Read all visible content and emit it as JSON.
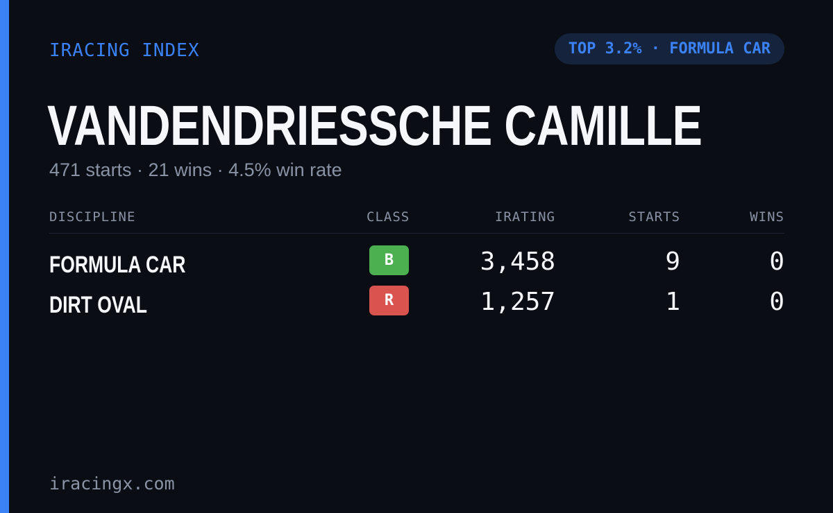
{
  "brand": "IRACING INDEX",
  "rank_badge": "TOP 3.2% · FORMULA CAR",
  "player": {
    "name": "VANDENDRIESSCHE CAMILLE",
    "summary": "471 starts · 21 wins · 4.5% win rate"
  },
  "table": {
    "headers": {
      "discipline": "DISCIPLINE",
      "class": "CLASS",
      "irating": "IRATING",
      "starts": "STARTS",
      "wins": "WINS"
    },
    "rows": [
      {
        "discipline": "FORMULA CAR",
        "class": "B",
        "class_color": "#4caf50",
        "irating": "3,458",
        "starts": "9",
        "wins": "0"
      },
      {
        "discipline": "DIRT OVAL",
        "class": "R",
        "class_color": "#d9534f",
        "irating": "1,257",
        "starts": "1",
        "wins": "0"
      }
    ]
  },
  "footer": "iracingx.com",
  "colors": {
    "accent": "#3b82f6",
    "background": "#0a0d14"
  }
}
